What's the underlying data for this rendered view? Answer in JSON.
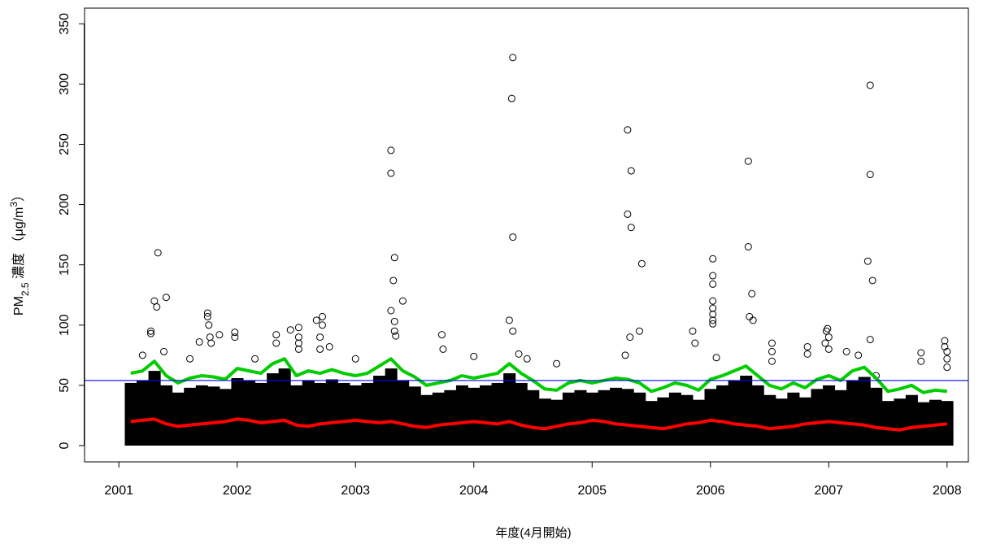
{
  "chart_data": {
    "type": "scatter",
    "xlabel": "年度(4月開始)",
    "ylabel_parts": [
      {
        "text": "PM"
      },
      {
        "text": "2.5",
        "shift": "sub"
      },
      {
        "text": " 濃度 （μg/m"
      },
      {
        "text": "3",
        "shift": "super"
      },
      {
        "text": "）"
      }
    ],
    "xlim": [
      2000.71,
      2008.18
    ],
    "ylim": [
      -13.5,
      363
    ],
    "xticks": [
      2001,
      2002,
      2003,
      2004,
      2005,
      2006,
      2007,
      2008
    ],
    "yticks": [
      0,
      50,
      100,
      150,
      200,
      250,
      300,
      350
    ],
    "reference_line": {
      "value": 54,
      "color": "#0000ff"
    },
    "x": [
      2001.1,
      2001.2,
      2001.3,
      2001.4,
      2001.5,
      2001.6,
      2001.7,
      2001.8,
      2001.9,
      2002.0,
      2002.1,
      2002.2,
      2002.3,
      2002.4,
      2002.5,
      2002.6,
      2002.7,
      2002.8,
      2002.9,
      2003.0,
      2003.1,
      2003.2,
      2003.3,
      2003.4,
      2003.5,
      2003.6,
      2003.7,
      2003.8,
      2003.9,
      2004.0,
      2004.1,
      2004.2,
      2004.3,
      2004.4,
      2004.5,
      2004.6,
      2004.7,
      2004.8,
      2004.9,
      2005.0,
      2005.1,
      2005.2,
      2005.3,
      2005.4,
      2005.5,
      2005.6,
      2005.7,
      2005.8,
      2005.9,
      2006.0,
      2006.1,
      2006.2,
      2006.3,
      2006.4,
      2006.5,
      2006.6,
      2006.7,
      2006.8,
      2006.9,
      2007.0,
      2007.1,
      2007.2,
      2007.3,
      2007.4,
      2007.5,
      2007.6,
      2007.7,
      2007.8,
      2007.9,
      2008.0
    ],
    "series": [
      {
        "type": "band",
        "color": "#000000",
        "values": [
          52,
          54,
          62,
          50,
          44,
          48,
          50,
          49,
          47,
          56,
          54,
          52,
          60,
          64,
          50,
          54,
          52,
          55,
          52,
          50,
          52,
          58,
          64,
          54,
          49,
          42,
          44,
          46,
          50,
          48,
          50,
          52,
          60,
          52,
          46,
          39,
          38,
          44,
          46,
          44,
          46,
          48,
          47,
          44,
          37,
          40,
          44,
          42,
          38,
          47,
          50,
          54,
          58,
          50,
          42,
          39,
          44,
          40,
          47,
          50,
          46,
          54,
          57,
          48,
          37,
          39,
          42,
          36,
          38,
          37
        ]
      },
      {
        "type": "points",
        "color": "#000000",
        "x": [
          2001.33,
          2001.3,
          2001.32,
          2001.4,
          2001.27,
          2001.27,
          2001.2,
          2001.38,
          2001.6,
          2001.68,
          2001.75,
          2001.75,
          2001.76,
          2001.77,
          2001.78,
          2001.85,
          2001.98,
          2001.98,
          2002.15,
          2002.33,
          2002.33,
          2002.45,
          2002.52,
          2002.52,
          2002.52,
          2002.52,
          2002.67,
          2002.72,
          2002.72,
          2002.7,
          2002.7,
          2002.78,
          2003.0,
          2003.3,
          2003.3,
          2003.33,
          2003.32,
          2003.4,
          2003.3,
          2003.33,
          2003.33,
          2003.34,
          2003.73,
          2003.74,
          2004.0,
          2004.3,
          2004.32,
          2004.33,
          2004.33,
          2004.33,
          2004.38,
          2004.45,
          2004.7,
          2005.3,
          2005.3,
          2005.33,
          2005.33,
          2005.4,
          2005.42,
          2005.32,
          2005.28,
          2005.85,
          2005.87,
          2006.02,
          2006.02,
          2006.02,
          2006.02,
          2006.02,
          2006.02,
          2006.02,
          2006.02,
          2006.05,
          2006.32,
          2006.32,
          2006.35,
          2006.33,
          2006.36,
          2006.52,
          2006.52,
          2006.52,
          2006.82,
          2006.82,
          2006.98,
          2006.99,
          2007.0,
          2006.97,
          2007.0,
          2007.15,
          2007.25,
          2007.33,
          2007.35,
          2007.35,
          2007.37,
          2007.35,
          2007.4,
          2007.78,
          2007.78,
          2007.98,
          2007.98,
          2008.0,
          2008.0,
          2008.0
        ],
        "values": [
          160,
          120,
          115,
          123,
          95,
          93,
          75,
          78,
          72,
          86,
          110,
          107,
          100,
          90,
          85,
          92,
          94,
          90,
          72,
          92,
          85,
          96,
          98,
          90,
          85,
          80,
          104,
          107,
          100,
          90,
          80,
          82,
          72,
          245,
          226,
          156,
          137,
          120,
          112,
          103,
          95,
          91,
          92,
          80,
          74,
          104,
          288,
          322,
          173,
          95,
          76,
          72,
          68,
          262,
          192,
          228,
          181,
          95,
          151,
          90,
          75,
          95,
          85,
          155,
          141,
          134,
          120,
          114,
          109,
          104,
          101,
          73,
          236,
          165,
          126,
          107,
          104,
          85,
          78,
          70,
          82,
          76,
          95,
          97,
          90,
          85,
          80,
          78,
          75,
          153,
          299,
          225,
          137,
          88,
          58,
          77,
          70,
          87,
          82,
          78,
          72,
          65
        ]
      },
      {
        "type": "line",
        "color": "#00cc00",
        "values": [
          60,
          62,
          70,
          58,
          52,
          56,
          58,
          57,
          55,
          64,
          62,
          60,
          68,
          72,
          58,
          62,
          60,
          63,
          60,
          58,
          60,
          66,
          72,
          62,
          57,
          50,
          52,
          54,
          58,
          56,
          58,
          60,
          68,
          60,
          54,
          47,
          46,
          52,
          54,
          52,
          54,
          56,
          55,
          52,
          45,
          48,
          52,
          50,
          46,
          55,
          58,
          62,
          66,
          58,
          50,
          47,
          52,
          48,
          55,
          58,
          54,
          62,
          65,
          56,
          45,
          47,
          50,
          44,
          46,
          45
        ]
      },
      {
        "type": "line",
        "color": "#ff0000",
        "values": [
          20,
          21,
          22,
          18,
          16,
          17,
          18,
          19,
          20,
          22,
          21,
          19,
          20,
          21,
          17,
          16,
          18,
          19,
          20,
          21,
          20,
          19,
          20,
          18,
          16,
          15,
          17,
          18,
          19,
          20,
          19,
          18,
          20,
          17,
          15,
          14,
          16,
          18,
          19,
          21,
          20,
          18,
          17,
          16,
          15,
          14,
          16,
          18,
          19,
          21,
          20,
          18,
          17,
          16,
          14,
          15,
          16,
          18,
          19,
          20,
          19,
          18,
          17,
          15,
          14,
          13,
          15,
          16,
          17,
          18
        ]
      }
    ]
  }
}
